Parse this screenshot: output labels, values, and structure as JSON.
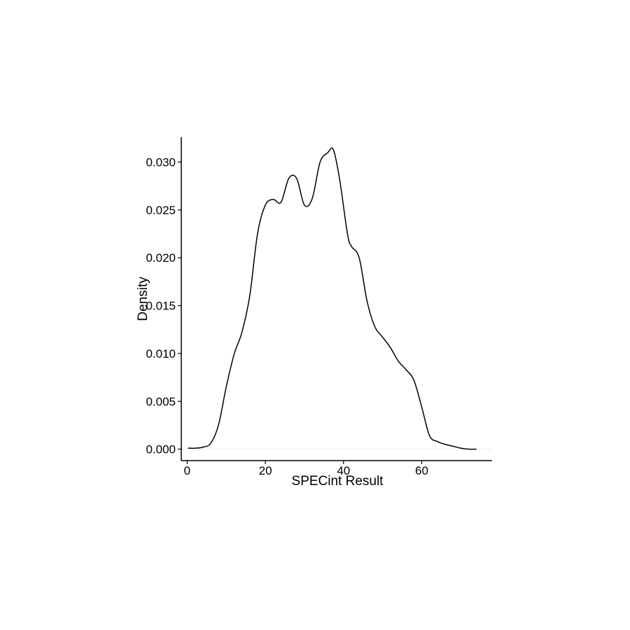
{
  "chart_data": {
    "type": "line",
    "title": "",
    "xlabel": "SPECint Result",
    "ylabel": "Density",
    "xlim": [
      -1.5,
      78
    ],
    "ylim": [
      -0.0012,
      0.0326
    ],
    "x_ticks": [
      0,
      20,
      40,
      60
    ],
    "x_tick_labels": [
      "0",
      "20",
      "40",
      "60"
    ],
    "y_ticks": [
      0.0,
      0.005,
      0.01,
      0.015,
      0.02,
      0.025,
      0.03
    ],
    "y_tick_labels": [
      "0.000",
      "0.005",
      "0.010",
      "0.015",
      "0.020",
      "0.025",
      "0.030"
    ],
    "grid": false,
    "legend": "none",
    "line_color": "#000000",
    "baseline_color": "#ebebeb",
    "series": [
      {
        "x": [
          0.2,
          2,
          4,
          6,
          8,
          10,
          12,
          14,
          16,
          18,
          20,
          22,
          24,
          26,
          28,
          30,
          32,
          34,
          36,
          37.4,
          39,
          41,
          42,
          44,
          46,
          48,
          50,
          52,
          54,
          56,
          58,
          60,
          62,
          64,
          66,
          68,
          70,
          72,
          74
        ],
        "y": [
          0.0001,
          0.0001,
          0.0002,
          0.0006,
          0.0025,
          0.0065,
          0.0099,
          0.0122,
          0.016,
          0.0225,
          0.0255,
          0.0261,
          0.0258,
          0.0283,
          0.0283,
          0.0255,
          0.0262,
          0.03,
          0.031,
          0.0313,
          0.0282,
          0.0225,
          0.0212,
          0.02,
          0.0155,
          0.0128,
          0.0117,
          0.0106,
          0.0092,
          0.0083,
          0.0072,
          0.0044,
          0.0014,
          0.0008,
          0.0005,
          0.0003,
          0.0001,
          0.0,
          0.0
        ]
      }
    ]
  }
}
